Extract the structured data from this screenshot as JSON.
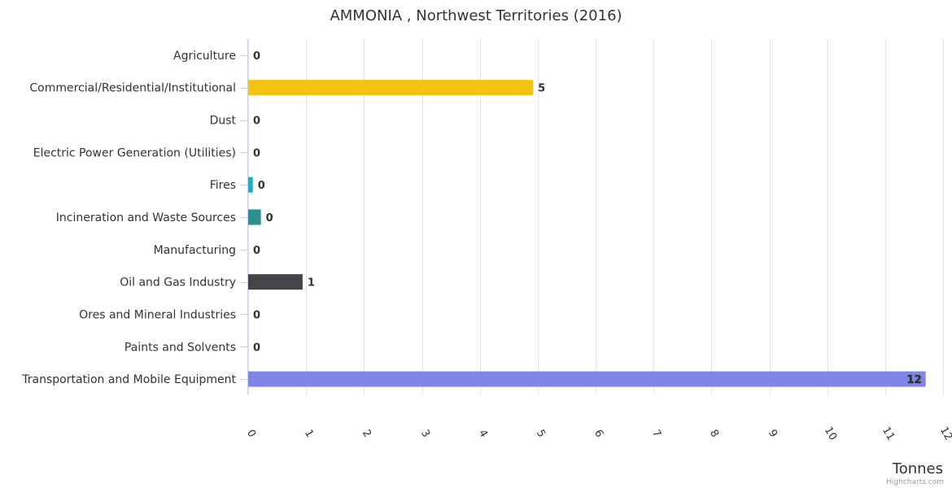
{
  "chart_data": {
    "type": "bar",
    "orientation": "horizontal",
    "title": "AMMONIA , Northwest Territories (2016)",
    "xlabel": "",
    "ylabel": "Tonnes",
    "categories": [
      "Agriculture",
      "Commercial/Residential/Institutional",
      "Dust",
      "Electric Power Generation (Utilities)",
      "Fires",
      "Incineration and Waste Sources",
      "Manufacturing",
      "Oil and Gas Industry",
      "Ores and Mineral Industries",
      "Paints and Solvents",
      "Transportation and Mobile Equipment"
    ],
    "values": [
      0,
      4.92,
      0,
      0,
      0.08,
      0.22,
      0,
      0.94,
      0,
      0,
      11.7
    ],
    "data_labels": [
      "0",
      "5",
      "0",
      "0",
      "0",
      "0",
      "0",
      "1",
      "0",
      "0",
      "12"
    ],
    "colors": [
      "#7cb5ec",
      "#f1c40f",
      "#2b908f",
      "#f45b5b",
      "#1aadce",
      "#2b908f",
      "#90ed7d",
      "#434348",
      "#8085e9",
      "#f15c80",
      "#8085e9"
    ],
    "ticks": [
      0,
      1,
      2,
      3,
      4,
      5,
      6,
      7,
      8,
      9,
      10,
      11,
      12
    ],
    "ylim": [
      0,
      12
    ],
    "grid": true,
    "legend": "none"
  },
  "credits": "Highcharts.com"
}
